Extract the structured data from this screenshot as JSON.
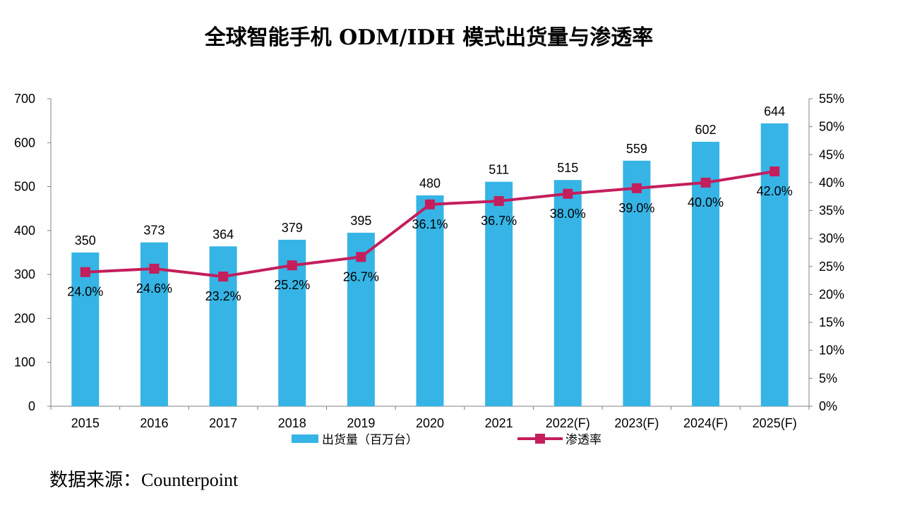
{
  "title": "全球智能手机 ODM/IDH 模式出货量与渗透率",
  "source": "数据来源：Counterpoint",
  "colors": {
    "bar": "#36b4e5",
    "line": "#c41e5c",
    "axis": "#808080"
  },
  "chart_data": {
    "type": "bar",
    "categories": [
      "2015",
      "2016",
      "2017",
      "2018",
      "2019",
      "2020",
      "2021",
      "2022(F)",
      "2023(F)",
      "2024(F)",
      "2025(F)"
    ],
    "series": [
      {
        "name": "出货量（百万台）",
        "type": "bar",
        "axis": "left",
        "values": [
          350,
          373,
          364,
          379,
          395,
          480,
          511,
          515,
          559,
          602,
          644
        ],
        "labels": [
          "350",
          "373",
          "364",
          "379",
          "395",
          "480",
          "511",
          "515",
          "559",
          "602",
          "644"
        ]
      },
      {
        "name": "渗透率",
        "type": "line",
        "axis": "right",
        "values": [
          24.0,
          24.6,
          23.2,
          25.2,
          26.7,
          36.1,
          36.7,
          38.0,
          39.0,
          40.0,
          42.0
        ],
        "labels": [
          "24.0%",
          "24.6%",
          "23.2%",
          "25.2%",
          "26.7%",
          "36.1%",
          "36.7%",
          "38.0%",
          "39.0%",
          "40.0%",
          "42.0%"
        ]
      }
    ],
    "y_left": {
      "min": 0,
      "max": 700,
      "ticks": [
        "0",
        "100",
        "200",
        "300",
        "400",
        "500",
        "600",
        "700"
      ]
    },
    "y_right": {
      "min": 0,
      "max": 55,
      "ticks": [
        "0%",
        "5%",
        "10%",
        "15%",
        "20%",
        "25%",
        "30%",
        "35%",
        "40%",
        "45%",
        "50%",
        "55%"
      ]
    },
    "legend_position": "bottom",
    "grid": false
  }
}
